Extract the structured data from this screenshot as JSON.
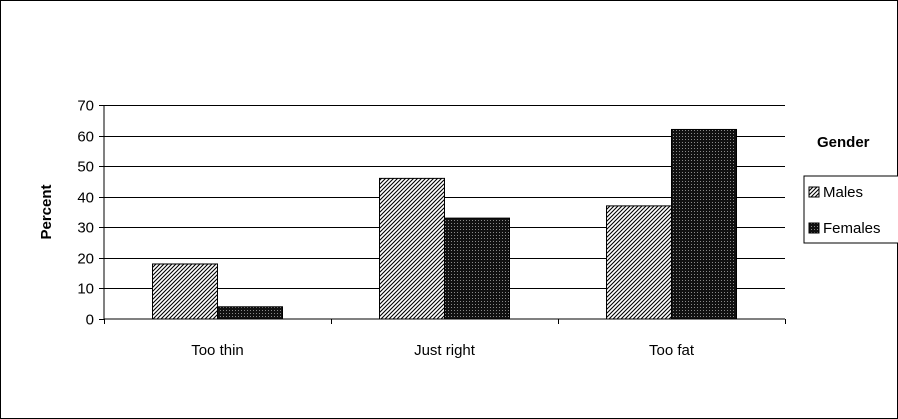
{
  "chart_data": {
    "type": "bar",
    "categories": [
      "Too thin",
      "Just right",
      "Too fat"
    ],
    "series": [
      {
        "name": "Males",
        "values": [
          18,
          46,
          37
        ],
        "pattern": "diagonal-hatch"
      },
      {
        "name": "Females",
        "values": [
          4,
          33,
          62
        ],
        "pattern": "dense-dark"
      }
    ],
    "xlabel": "",
    "ylabel": "Percent",
    "ylim": [
      0,
      70
    ],
    "yticks": [
      0,
      10,
      20,
      30,
      40,
      50,
      60,
      70
    ],
    "grid": true,
    "legend": {
      "title": "Gender",
      "position": "right"
    },
    "colors": {
      "bar_fill": "#ffffff",
      "bar_ink": "#000000",
      "background": "#ffffff"
    }
  }
}
